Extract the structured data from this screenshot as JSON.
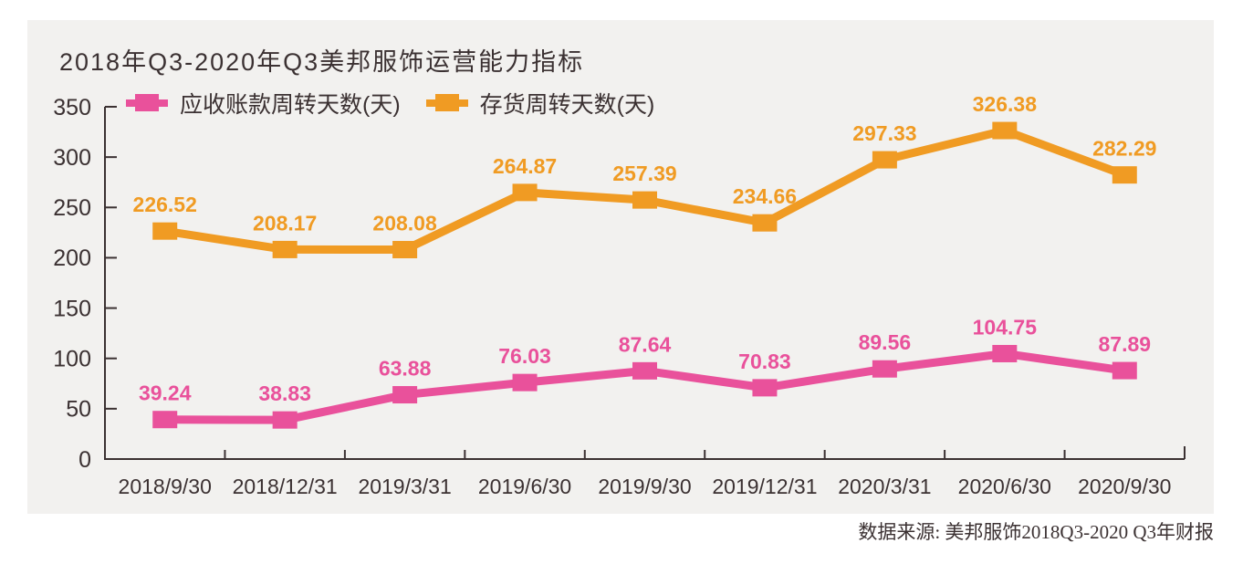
{
  "colors": {
    "page_background": "#FFFFFF",
    "panel_background": "#F2F1EF",
    "axis": "#3B3132",
    "text": "#3B3132",
    "series_pink": "#E9519B",
    "series_orange": "#F09B23"
  },
  "source_note": "数据来源: 美邦服饰2018Q3-2020 Q3年财报",
  "chart_data": {
    "type": "line",
    "title": "2018年Q3-2020年Q3美邦服饰运营能力指标",
    "categories": [
      "2018/9/30",
      "2018/12/31",
      "2019/3/31",
      "2019/6/30",
      "2019/9/30",
      "2019/12/31",
      "2020/3/31",
      "2020/6/30",
      "2020/9/30"
    ],
    "series": [
      {
        "name": "应收账款周转天数(天)",
        "color": "#E9519B",
        "values": [
          39.24,
          38.83,
          63.88,
          76.03,
          87.64,
          70.83,
          89.56,
          104.75,
          87.89
        ]
      },
      {
        "name": "存货周转天数(天)",
        "color": "#F09B23",
        "values": [
          226.52,
          208.17,
          208.08,
          264.87,
          257.39,
          234.66,
          297.33,
          326.38,
          282.29
        ]
      }
    ],
    "xlabel": "",
    "ylabel": "",
    "ylim": [
      0,
      350
    ],
    "yticks": [
      0,
      50,
      100,
      150,
      200,
      250,
      300,
      350
    ],
    "grid": false,
    "marker": "square",
    "data_labels": true,
    "legend_position": "top-left"
  }
}
